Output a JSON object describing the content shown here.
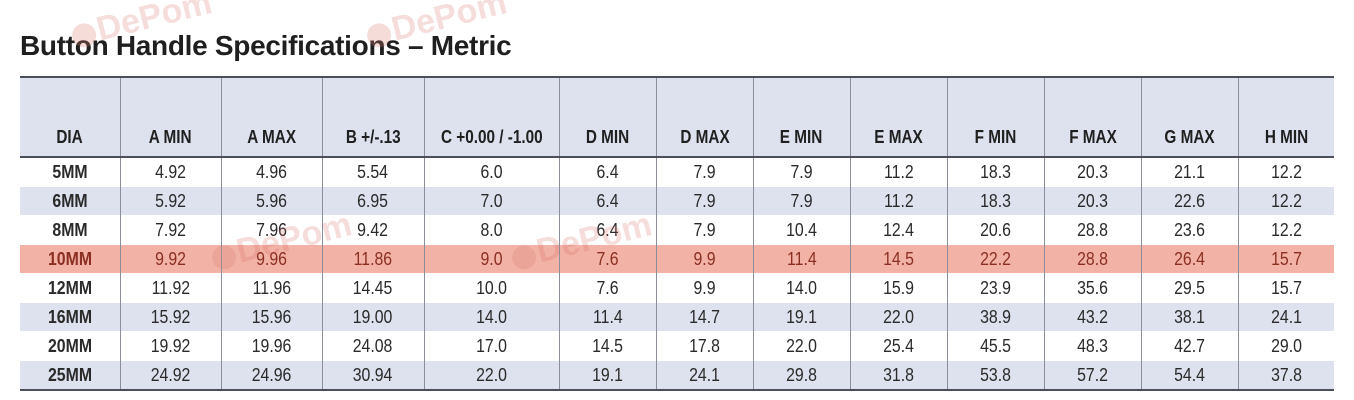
{
  "title": "Button Handle Specifications – Metric",
  "watermark": "DePom",
  "colors": {
    "header_bg": "#dde2ee",
    "row_tint": "#dde2ee",
    "highlight_row": "#f2b3a6",
    "rule": "#4a4f5a"
  },
  "table": {
    "headers": [
      "DIA",
      "A MIN",
      "A MAX",
      "B +/-.13",
      "C +0.00 / -1.00",
      "D MIN",
      "D MAX",
      "E MIN",
      "E MAX",
      "F MIN",
      "F MAX",
      "G MAX",
      "H MIN"
    ],
    "highlighted_row_index": 3,
    "rows": [
      [
        "5MM",
        "4.92",
        "4.96",
        "5.54",
        "6.0",
        "6.4",
        "7.9",
        "7.9",
        "11.2",
        "18.3",
        "20.3",
        "21.1",
        "12.2"
      ],
      [
        "6MM",
        "5.92",
        "5.96",
        "6.95",
        "7.0",
        "6.4",
        "7.9",
        "7.9",
        "11.2",
        "18.3",
        "20.3",
        "22.6",
        "12.2"
      ],
      [
        "8MM",
        "7.92",
        "7.96",
        "9.42",
        "8.0",
        "6.4",
        "7.9",
        "10.4",
        "12.4",
        "20.6",
        "28.8",
        "23.6",
        "12.2"
      ],
      [
        "10MM",
        "9.92",
        "9.96",
        "11.86",
        "9.0",
        "7.6",
        "9.9",
        "11.4",
        "14.5",
        "22.2",
        "28.8",
        "26.4",
        "15.7"
      ],
      [
        "12MM",
        "11.92",
        "11.96",
        "14.45",
        "10.0",
        "7.6",
        "9.9",
        "14.0",
        "15.9",
        "23.9",
        "35.6",
        "29.5",
        "15.7"
      ],
      [
        "16MM",
        "15.92",
        "15.96",
        "19.00",
        "14.0",
        "11.4",
        "14.7",
        "19.1",
        "22.0",
        "38.9",
        "43.2",
        "38.1",
        "24.1"
      ],
      [
        "20MM",
        "19.92",
        "19.96",
        "24.08",
        "17.0",
        "14.5",
        "17.8",
        "22.0",
        "25.4",
        "45.5",
        "48.3",
        "42.7",
        "29.0"
      ],
      [
        "25MM",
        "24.92",
        "24.96",
        "30.94",
        "22.0",
        "19.1",
        "24.1",
        "29.8",
        "31.8",
        "53.8",
        "57.2",
        "54.4",
        "37.8"
      ]
    ]
  }
}
